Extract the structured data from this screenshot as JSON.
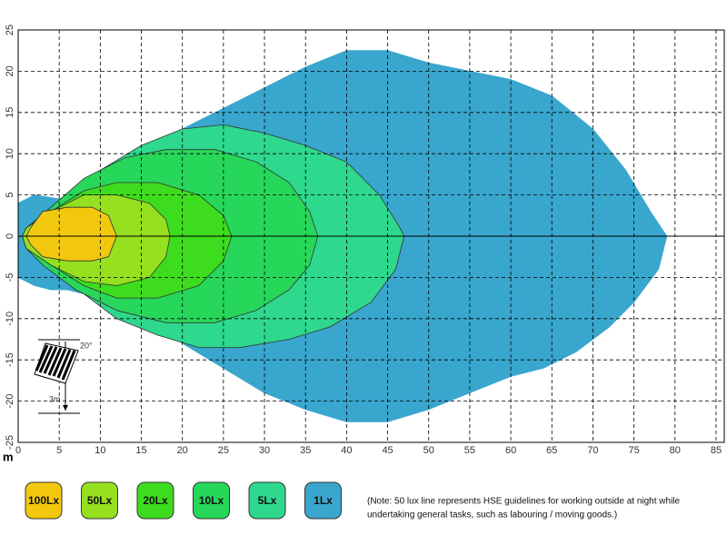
{
  "chart_data": {
    "type": "contour",
    "x_unit_label": "m",
    "xlim": [
      0,
      86
    ],
    "ylim": [
      -25,
      25
    ],
    "xticks": [
      0,
      5,
      10,
      15,
      20,
      25,
      30,
      35,
      40,
      45,
      50,
      55,
      60,
      65,
      70,
      75,
      80,
      85
    ],
    "yticks": [
      -25,
      -20,
      -15,
      -10,
      -5,
      0,
      5,
      10,
      15,
      20,
      25
    ],
    "grid": true,
    "series": [
      {
        "name": "100Lx",
        "color": "#f2c80f",
        "x": [
          1.5,
          3,
          6,
          9,
          11,
          12,
          11,
          9,
          6,
          3,
          1.5,
          1
        ],
        "y": [
          1,
          3,
          3.5,
          3.5,
          2.5,
          0,
          -2.5,
          -3,
          -3,
          -2.5,
          -1,
          0
        ]
      },
      {
        "name": "50Lx",
        "color": "#95e01f",
        "x": [
          1,
          4,
          8,
          12,
          16,
          18,
          18.5,
          18,
          16,
          12,
          8,
          4,
          1,
          0.5
        ],
        "y": [
          1,
          3,
          5,
          5,
          4,
          2,
          0,
          -2.5,
          -5,
          -6,
          -5.5,
          -3.5,
          -1.5,
          0
        ]
      },
      {
        "name": "20Lx",
        "color": "#3ddc1e",
        "x": [
          1,
          4,
          8,
          12,
          17,
          22,
          25,
          26,
          25,
          22,
          17,
          12,
          8,
          4,
          1,
          0.5
        ],
        "y": [
          1,
          3,
          5.5,
          6.5,
          6.5,
          5,
          2.5,
          0,
          -3,
          -6,
          -7.5,
          -7.5,
          -6,
          -3.5,
          -1.5,
          0
        ]
      },
      {
        "name": "10Lx",
        "color": "#27d75a",
        "x": [
          1,
          4,
          8,
          13,
          18,
          24,
          29,
          33,
          35.5,
          36.5,
          35.5,
          33,
          29,
          24,
          18,
          12,
          7,
          3,
          1,
          0.5
        ],
        "y": [
          1,
          3.5,
          7,
          9.5,
          10.5,
          10.5,
          9,
          6.5,
          3,
          0,
          -3.5,
          -6.5,
          -9,
          -10.5,
          -10.5,
          -9,
          -6.5,
          -3.5,
          -1.5,
          0
        ]
      },
      {
        "name": "5Lx",
        "color": "#2ed88d",
        "x": [
          2,
          5,
          10,
          15,
          20,
          25,
          30,
          35,
          40,
          44,
          46.5,
          47,
          46,
          43,
          38,
          33,
          27,
          22,
          17,
          12,
          8,
          4,
          1,
          0.5
        ],
        "y": [
          1,
          4,
          8,
          11,
          13,
          13.5,
          12.5,
          11,
          9,
          5,
          1,
          0,
          -4,
          -8,
          -11,
          -12.5,
          -13.5,
          -13.5,
          -12,
          -10,
          -7,
          -4,
          -1.5,
          0
        ]
      },
      {
        "name": "1Lx",
        "color": "#39a6cd",
        "x": [
          0,
          2,
          5,
          8,
          12,
          16,
          20,
          25,
          30,
          35,
          40,
          45,
          50,
          55,
          60,
          65,
          70,
          74,
          77,
          79,
          78,
          75,
          72,
          68,
          64,
          60,
          55,
          50,
          45,
          40,
          35,
          30,
          25,
          20,
          15,
          10,
          6,
          4,
          2,
          0
        ],
        "y": [
          4,
          5,
          4.5,
          5.5,
          8,
          10.5,
          13,
          15.5,
          18,
          20.5,
          22.5,
          22.5,
          21,
          20,
          19,
          17,
          13,
          8,
          3,
          0,
          -4,
          -8,
          -11,
          -14,
          -16,
          -17,
          -19,
          -21,
          -22.5,
          -22.5,
          -21,
          -19,
          -16,
          -13,
          -9.5,
          -7.5,
          -6.5,
          -6.5,
          -6,
          -5
        ]
      }
    ],
    "inset": {
      "angle_label": "20°",
      "height_label": "3m"
    },
    "note": [
      "(Note: 50 lux line represents HSE guidelines for working outside at night while",
      "undertaking general tasks, such as labouring / moving goods.)"
    ]
  }
}
